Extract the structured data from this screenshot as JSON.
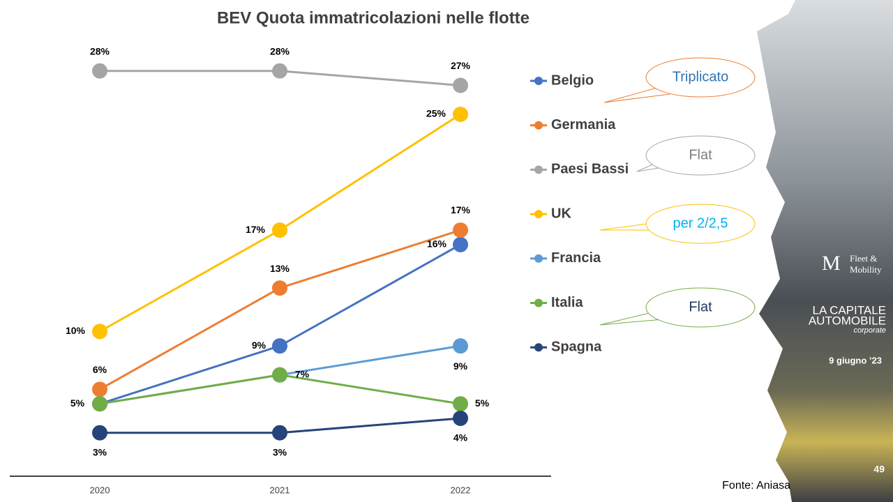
{
  "chart_data": {
    "type": "line",
    "title": "BEV Quota immatricolazioni nelle flotte",
    "categories": [
      "2020",
      "2021",
      "2022"
    ],
    "ylim": [
      0,
      30
    ],
    "series": [
      {
        "name": "Belgio",
        "color": "#4472c4",
        "values": [
          5,
          9,
          16
        ],
        "value_labels": [
          null,
          "9%",
          "16%"
        ]
      },
      {
        "name": "Germania",
        "color": "#ed7d31",
        "values": [
          6,
          13,
          17
        ],
        "value_labels": [
          "6%",
          "13%",
          "17%"
        ]
      },
      {
        "name": "Paesi Bassi",
        "color": "#a5a5a5",
        "values": [
          28,
          28,
          27
        ],
        "value_labels": [
          "28%",
          "28%",
          "27%"
        ]
      },
      {
        "name": "UK",
        "color": "#ffc000",
        "values": [
          10,
          17,
          25
        ],
        "value_labels": [
          "10%",
          "17%",
          "25%"
        ]
      },
      {
        "name": "Francia",
        "color": "#5b9bd5",
        "values": [
          5,
          7,
          9
        ],
        "value_labels": [
          null,
          null,
          "9%"
        ]
      },
      {
        "name": "Italia",
        "color": "#70ad47",
        "values": [
          5,
          7,
          5
        ],
        "value_labels": [
          "5%",
          "7%",
          "5%"
        ]
      },
      {
        "name": "Spagna",
        "color": "#264478",
        "values": [
          3,
          3,
          4
        ],
        "value_labels": [
          "3%",
          "3%",
          "4%"
        ]
      }
    ],
    "annotations": [
      "Triplicato",
      "Flat",
      "per 2/2,5",
      "Flat"
    ]
  },
  "slide": {
    "source": "Fonte: Aniasa",
    "date": "9 giugno ’23",
    "page": "49",
    "logo_fleet": "Fleet &",
    "logo_mobility": "Mobility",
    "logo_capitale": "LA CAPITALE",
    "logo_automobile": "AUTOMOBILE",
    "logo_corporate": "corporate"
  }
}
